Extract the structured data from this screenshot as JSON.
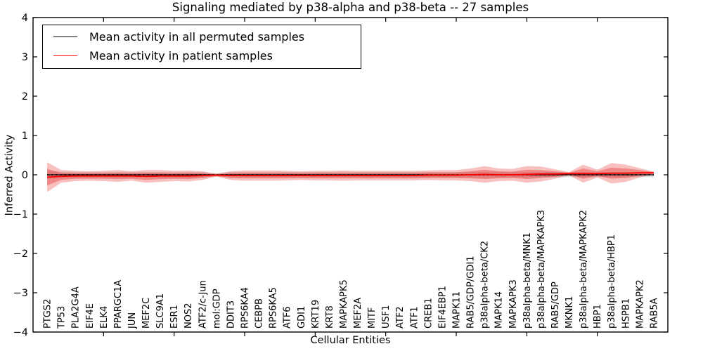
{
  "chart_data": {
    "type": "line",
    "title": "Signaling mediated by p38-alpha and p38-beta -- 27 samples",
    "xlabel": "Cellular Entities",
    "ylabel": "Inferred Activity",
    "ylim": [
      -4,
      4
    ],
    "yticks": [
      4,
      3,
      2,
      1,
      0,
      -1,
      -2,
      -3,
      -4
    ],
    "ytick_labels": [
      "4",
      "3",
      "2",
      "1",
      "0",
      "−1",
      "−2",
      "−3",
      "−4"
    ],
    "x_tick_positions": [
      5,
      10,
      15,
      20,
      25,
      30,
      35,
      40
    ],
    "grid": false,
    "legend_position": "upper-left",
    "legend": [
      {
        "label": "Mean activity in all permuted samples",
        "color": "#000000"
      },
      {
        "label": "Mean activity in patient samples",
        "color": "#ff0000"
      }
    ],
    "categories": [
      "PTGS2",
      "TP53",
      "PLA2G4A",
      "EIF4E",
      "ELK4",
      "PPARGC1A",
      "JUN",
      "MEF2C",
      "SLC9A1",
      "ESR1",
      "NOS2",
      "ATF2/c-Jun",
      "mol:GDP",
      "DDIT3",
      "RPS6KA4",
      "CEBPB",
      "RPS6KA5",
      "ATF6",
      "GDI1",
      "KRT19",
      "KRT8",
      "MAPKAPK5",
      "MEF2A",
      "MITF",
      "USF1",
      "ATF2",
      "ATF1",
      "CREB1",
      "EIF4EBP1",
      "MAPK11",
      "RAB5/GDP/GDI1",
      "p38alpha-beta/CK2",
      "MAPK14",
      "MAPKAPK3",
      "p38alpha-beta/MNK1",
      "p38alpha-beta/MAPKAPK3",
      "RAB5/GDP",
      "MKNK1",
      "p38alpha-beta/MAPKAPK2",
      "HBP1",
      "p38alpha-beta/HBP1",
      "HSPB1",
      "MAPKAPK2",
      "RAB5A"
    ],
    "series": [
      {
        "name": "Mean activity in all permuted samples",
        "color": "#000000",
        "style": "solid",
        "values": [
          0,
          0,
          0,
          0,
          0,
          0,
          0,
          0,
          0,
          0,
          0,
          0,
          0,
          0,
          0,
          0,
          0,
          0,
          0,
          0,
          0,
          0,
          0,
          0,
          0,
          0,
          0,
          0,
          0,
          0,
          0,
          0,
          0,
          0,
          0,
          0,
          0,
          0,
          0,
          0,
          0,
          0,
          0,
          0
        ]
      },
      {
        "name": "Mean activity in patient samples",
        "color": "#ff0000",
        "style": "solid",
        "values": [
          -0.06,
          -0.04,
          -0.03,
          -0.03,
          -0.03,
          -0.03,
          -0.03,
          -0.04,
          -0.03,
          -0.03,
          -0.03,
          -0.02,
          -0.01,
          -0.02,
          -0.02,
          -0.02,
          -0.02,
          -0.02,
          -0.02,
          -0.02,
          -0.02,
          -0.02,
          -0.02,
          -0.02,
          -0.02,
          -0.02,
          -0.02,
          -0.01,
          -0.01,
          -0.01,
          0,
          0.01,
          0,
          0,
          0.01,
          0.02,
          0.02,
          0.03,
          0.03,
          0.03,
          0.04,
          0.04,
          0.05,
          0.05
        ]
      }
    ],
    "zero_reference_line": {
      "value": 0,
      "style": "dotted",
      "color": "#000000"
    },
    "bands": [
      {
        "name": "permuted-samples-spread",
        "center_series": 0,
        "color": "rgba(130,130,130,0.28)",
        "half_widths": [
          0.1,
          0.08,
          0.07,
          0.07,
          0.07,
          0.07,
          0.07,
          0.07,
          0.07,
          0.07,
          0.07,
          0.07,
          0.04,
          0.07,
          0.07,
          0.07,
          0.07,
          0.07,
          0.07,
          0.07,
          0.07,
          0.07,
          0.07,
          0.07,
          0.07,
          0.07,
          0.07,
          0.07,
          0.07,
          0.07,
          0.07,
          0.07,
          0.07,
          0.07,
          0.07,
          0.07,
          0.07,
          0.06,
          0.07,
          0.06,
          0.07,
          0.07,
          0.06,
          0.06
        ]
      },
      {
        "name": "patient-samples-spread-outer",
        "center_series": 1,
        "color": "rgba(235,60,60,0.32)",
        "half_widths": [
          0.38,
          0.16,
          0.13,
          0.12,
          0.13,
          0.15,
          0.12,
          0.16,
          0.15,
          0.13,
          0.14,
          0.11,
          0.04,
          0.11,
          0.13,
          0.13,
          0.13,
          0.12,
          0.11,
          0.12,
          0.12,
          0.13,
          0.12,
          0.12,
          0.12,
          0.12,
          0.12,
          0.12,
          0.13,
          0.13,
          0.16,
          0.21,
          0.16,
          0.15,
          0.21,
          0.19,
          0.12,
          0.04,
          0.23,
          0.1,
          0.26,
          0.22,
          0.12,
          0.03
        ]
      },
      {
        "name": "patient-samples-spread-inner",
        "center_series": 1,
        "color": "rgba(225,45,45,0.38)",
        "half_widths": [
          0.21,
          0.09,
          0.07,
          0.07,
          0.07,
          0.08,
          0.07,
          0.09,
          0.08,
          0.07,
          0.08,
          0.06,
          0.02,
          0.06,
          0.07,
          0.07,
          0.07,
          0.07,
          0.06,
          0.07,
          0.07,
          0.07,
          0.07,
          0.07,
          0.07,
          0.07,
          0.07,
          0.07,
          0.07,
          0.07,
          0.09,
          0.12,
          0.09,
          0.08,
          0.12,
          0.1,
          0.07,
          0.02,
          0.13,
          0.06,
          0.14,
          0.12,
          0.07,
          0.02
        ]
      }
    ]
  }
}
